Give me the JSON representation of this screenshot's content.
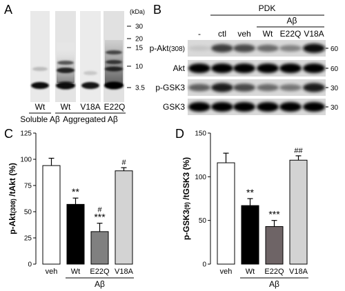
{
  "panel_A": {
    "letter": "A",
    "unit": "(kDa)",
    "ladder": [
      "30",
      "20",
      "15",
      "10",
      "3.5"
    ],
    "lanes": [
      "Wt",
      "Wt",
      "V18A",
      "E22Q"
    ],
    "groups": [
      "Soluble Aβ",
      "Aggregated Aβ"
    ]
  },
  "panel_B": {
    "letter": "B",
    "pdk": "PDK",
    "abeta": "Aβ",
    "lanes": [
      "-",
      "ctl",
      "veh",
      "Wt",
      "E22Q",
      "V18A"
    ],
    "rows": [
      {
        "label_main": "p-Akt",
        "label_sub": "(308)",
        "marker": "60"
      },
      {
        "label_main": "Akt",
        "label_sub": "",
        "marker": "60"
      },
      {
        "label_main": "p-GSK3",
        "label_sub": "",
        "marker": "30"
      },
      {
        "label_main": "GSK3",
        "label_sub": "",
        "marker": "30"
      }
    ]
  },
  "chart_data": [
    {
      "type": "bar",
      "panel": "C",
      "ylabel_main": "p-Akt",
      "ylabel_sub": "(308)",
      "ylabel_rest": " /tAkt (%)",
      "categories": [
        "veh",
        "Wt",
        "E22Q",
        "V18A"
      ],
      "group_label": "Aβ",
      "values": [
        94,
        57,
        31,
        89
      ],
      "errors": [
        7,
        6,
        8,
        3
      ],
      "colors": [
        "#ffffff",
        "#000000",
        "#808080",
        "#d3d3d3"
      ],
      "annotations": [
        "",
        "**",
        "#\n***",
        "#"
      ],
      "ylim": [
        0,
        125
      ],
      "yticks": [
        0,
        25,
        50,
        75,
        100,
        125
      ]
    },
    {
      "type": "bar",
      "panel": "D",
      "ylabel_main": "p-GSK3",
      "ylabel_sub": "(9)",
      "ylabel_rest": " /tGSK3 (%)",
      "categories": [
        "veh",
        "Wt",
        "E22Q",
        "V18A"
      ],
      "group_label": "Aβ",
      "values": [
        116,
        67,
        43,
        119
      ],
      "errors": [
        11,
        8,
        7,
        5
      ],
      "colors": [
        "#ffffff",
        "#000000",
        "#6e6466",
        "#d3d3d3"
      ],
      "annotations": [
        "",
        "**",
        "***",
        "##"
      ],
      "ylim": [
        0,
        150
      ],
      "yticks": [
        0,
        50,
        100,
        150
      ]
    }
  ]
}
